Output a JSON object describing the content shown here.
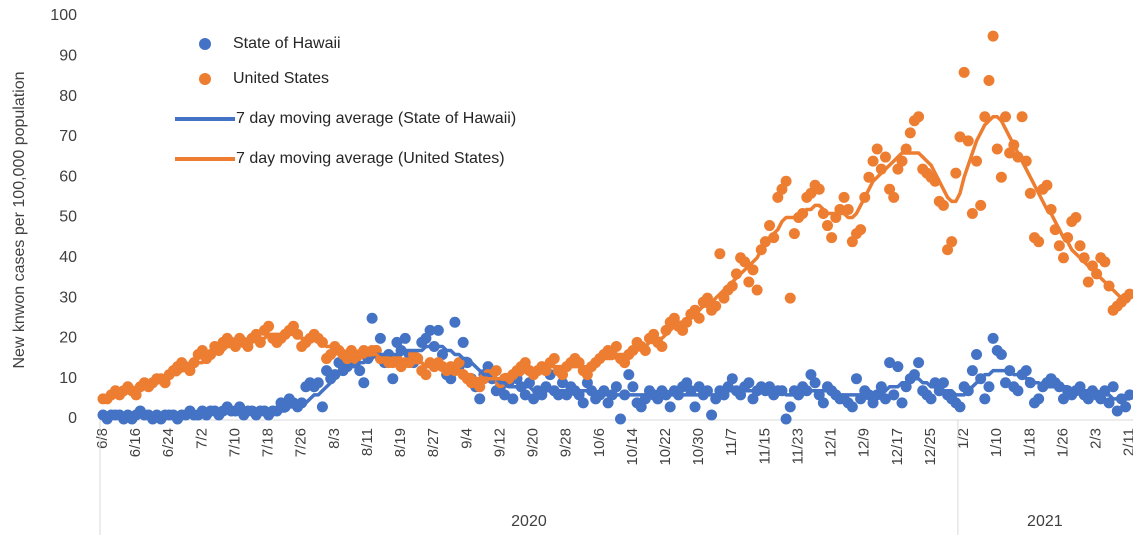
{
  "chart_data": {
    "type": "line",
    "y_label": "New knwon cases per 100,000 population",
    "ylim": [
      0,
      100
    ],
    "yticks": [
      0,
      10,
      20,
      30,
      40,
      50,
      60,
      70,
      80,
      90,
      100
    ],
    "grid": false,
    "legend": "upper left",
    "categories": [
      "6/8",
      null,
      null,
      null,
      null,
      null,
      null,
      null,
      "6/16",
      null,
      null,
      null,
      null,
      null,
      null,
      null,
      "6/24",
      null,
      null,
      null,
      null,
      null,
      null,
      null,
      "7/2",
      null,
      null,
      null,
      null,
      null,
      null,
      null,
      "7/10",
      null,
      null,
      null,
      null,
      null,
      null,
      null,
      "7/18",
      null,
      null,
      null,
      null,
      null,
      null,
      null,
      "7/26",
      null,
      null,
      null,
      null,
      null,
      null,
      null,
      "8/3",
      null,
      null,
      null,
      null,
      null,
      null,
      null,
      "8/11",
      null,
      null,
      null,
      null,
      null,
      null,
      null,
      "8/19",
      null,
      null,
      null,
      null,
      null,
      null,
      null,
      "8/27",
      null,
      null,
      null,
      null,
      null,
      null,
      null,
      "9/4",
      null,
      null,
      null,
      null,
      null,
      null,
      null,
      "9/12",
      null,
      null,
      null,
      null,
      null,
      null,
      null,
      "9/20",
      null,
      null,
      null,
      null,
      null,
      null,
      null,
      "9/28",
      null,
      null,
      null,
      null,
      null,
      null,
      null,
      "10/6",
      null,
      null,
      null,
      null,
      null,
      null,
      null,
      "10/14",
      null,
      null,
      null,
      null,
      null,
      null,
      null,
      "10/22",
      null,
      null,
      null,
      null,
      null,
      null,
      null,
      "10/30",
      null,
      null,
      null,
      null,
      null,
      null,
      null,
      "11/7",
      null,
      null,
      null,
      null,
      null,
      null,
      null,
      "11/15",
      null,
      null,
      null,
      null,
      null,
      null,
      null,
      "11/23",
      null,
      null,
      null,
      null,
      null,
      null,
      null,
      "12/1",
      null,
      null,
      null,
      null,
      null,
      null,
      null,
      "12/9",
      null,
      null,
      null,
      null,
      null,
      null,
      null,
      "12/17",
      null,
      null,
      null,
      null,
      null,
      null,
      null,
      "12/25",
      null,
      null,
      null,
      null,
      null,
      null,
      null,
      "1/2",
      null,
      null,
      null,
      null,
      null,
      null,
      null,
      "1/10",
      null,
      null,
      null,
      null,
      null,
      null,
      null,
      "1/18",
      null,
      null,
      null,
      null,
      null,
      null,
      null,
      "1/26",
      null,
      null,
      null,
      null,
      null,
      null,
      null,
      "2/3",
      null,
      null,
      null,
      null,
      null,
      null,
      null,
      "2/11"
    ],
    "year_groups": [
      {
        "label": "2020",
        "count": 207
      },
      {
        "label": "2021",
        "count": 42
      }
    ],
    "series": [
      {
        "name": "State of Hawaii",
        "type": "scatter",
        "color": "#4472c4",
        "values": [
          1,
          0,
          1,
          1,
          1,
          0,
          1,
          0,
          1,
          2,
          1,
          1,
          0,
          1,
          0,
          1,
          1,
          1,
          0,
          1,
          1,
          2,
          1,
          1,
          2,
          1,
          2,
          2,
          1,
          2,
          3,
          2,
          2,
          3,
          1,
          2,
          2,
          1,
          2,
          2,
          1,
          2,
          2,
          4,
          3,
          5,
          4,
          3,
          4,
          8,
          9,
          8,
          9,
          3,
          12,
          10,
          11,
          14,
          12,
          13,
          16,
          14,
          12,
          9,
          15,
          25,
          17,
          20,
          14,
          16,
          10,
          19,
          17,
          20,
          16,
          14,
          15,
          19,
          20,
          22,
          18,
          22,
          16,
          11,
          10,
          24,
          13,
          19,
          14,
          10,
          8,
          5,
          11,
          13,
          10,
          7,
          8,
          6,
          9,
          5,
          10,
          8,
          6,
          9,
          5,
          7,
          6,
          8,
          11,
          7,
          6,
          9,
          6,
          8,
          7,
          6,
          4,
          9,
          7,
          5,
          6,
          7,
          4,
          6,
          8,
          0,
          6,
          11,
          8,
          4,
          3,
          5,
          7,
          6,
          5,
          7,
          6,
          3,
          7,
          6,
          8,
          9,
          7,
          3,
          8,
          6,
          7,
          1,
          5,
          7,
          6,
          8,
          10,
          7,
          6,
          8,
          9,
          5,
          7,
          8,
          7,
          8,
          6,
          7,
          7,
          0,
          3,
          7,
          6,
          8,
          7,
          11,
          9,
          6,
          4,
          8,
          7,
          6,
          5,
          5,
          4,
          3,
          10,
          5,
          7,
          6,
          4,
          6,
          8,
          5,
          14,
          6,
          13,
          4,
          8,
          10,
          11,
          14,
          7,
          6,
          5,
          9,
          7,
          9,
          6,
          5,
          4,
          3,
          8,
          7,
          12,
          16,
          10,
          5,
          8,
          20,
          17,
          16,
          9,
          12,
          8,
          7,
          11,
          12,
          9,
          4,
          5,
          8,
          9,
          10,
          9,
          8,
          5,
          7,
          6,
          7,
          8,
          6,
          5,
          7,
          6,
          5,
          7,
          4,
          8,
          2,
          5,
          3,
          6
        ]
      },
      {
        "name": "United States",
        "type": "scatter",
        "color": "#ed7d31",
        "values": [
          5,
          5,
          6,
          7,
          6,
          7,
          8,
          7,
          6,
          8,
          9,
          8,
          9,
          10,
          10,
          9,
          11,
          12,
          13,
          14,
          13,
          12,
          14,
          16,
          17,
          15,
          16,
          18,
          17,
          19,
          20,
          19,
          18,
          20,
          19,
          18,
          20,
          21,
          19,
          22,
          23,
          20,
          19,
          20,
          21,
          22,
          23,
          21,
          18,
          19,
          20,
          21,
          20,
          19,
          15,
          16,
          18,
          17,
          16,
          15,
          17,
          15,
          16,
          17,
          16,
          17,
          17,
          15,
          15,
          14,
          14,
          15,
          13,
          14,
          14,
          16,
          15,
          12,
          11,
          14,
          13,
          14,
          13,
          12,
          13,
          12,
          14,
          11,
          10,
          9,
          9,
          8,
          10,
          11,
          11,
          12,
          9,
          10,
          10,
          11,
          12,
          13,
          14,
          12,
          11,
          12,
          13,
          12,
          14,
          15,
          12,
          11,
          13,
          14,
          15,
          14,
          12,
          11,
          13,
          14,
          15,
          16,
          17,
          16,
          18,
          15,
          14,
          16,
          17,
          19,
          18,
          17,
          20,
          21,
          19,
          18,
          22,
          24,
          25,
          23,
          22,
          24,
          26,
          27,
          25,
          29,
          30,
          27,
          28,
          41,
          30,
          32,
          33,
          36,
          40,
          39,
          34,
          37,
          32,
          42,
          44,
          48,
          45,
          55,
          57,
          59,
          30,
          46,
          50,
          51,
          55,
          56,
          58,
          57,
          51,
          48,
          45,
          50,
          52,
          55,
          52,
          44,
          46,
          47,
          55,
          60,
          64,
          67,
          62,
          65,
          57,
          55,
          62,
          64,
          67,
          71,
          74,
          75,
          62,
          61,
          60,
          59,
          54,
          53,
          42,
          44,
          61,
          70,
          86,
          69,
          51,
          64,
          53,
          75,
          84,
          95,
          67,
          60,
          75,
          66,
          68,
          65,
          75,
          64,
          56,
          45,
          44,
          57,
          58,
          52,
          47,
          43,
          40,
          45,
          49,
          50,
          43,
          40,
          34,
          38,
          36,
          40,
          39,
          33,
          27,
          28,
          29,
          30,
          31
        ]
      },
      {
        "name": "7 day moving average (State of Hawaii)",
        "type": "line",
        "color": "#4472c4",
        "values": [
          1,
          1,
          1,
          1,
          1,
          1,
          1,
          1,
          1,
          1,
          1,
          1,
          1,
          1,
          1,
          1,
          1,
          1,
          1,
          1,
          1,
          1,
          1,
          1,
          1,
          1,
          1,
          2,
          2,
          2,
          2,
          2,
          2,
          2,
          2,
          2,
          2,
          2,
          2,
          2,
          2,
          2,
          2,
          2,
          2,
          3,
          3,
          3,
          4,
          4,
          5,
          6,
          6,
          7,
          8,
          9,
          10,
          11,
          12,
          13,
          13,
          13,
          14,
          14,
          15,
          15,
          16,
          16,
          16,
          16,
          16,
          16,
          16,
          17,
          17,
          17,
          17,
          17,
          18,
          18,
          18,
          18,
          18,
          17,
          17,
          16,
          16,
          15,
          15,
          14,
          13,
          12,
          11,
          11,
          10,
          10,
          9,
          9,
          8,
          8,
          8,
          8,
          8,
          8,
          7,
          7,
          7,
          7,
          7,
          7,
          7,
          7,
          7,
          7,
          7,
          7,
          7,
          7,
          6,
          6,
          6,
          6,
          6,
          6,
          6,
          6,
          6,
          6,
          6,
          6,
          6,
          6,
          6,
          6,
          6,
          6,
          6,
          6,
          6,
          6,
          6,
          6,
          6,
          6,
          6,
          6,
          6,
          6,
          6,
          6,
          7,
          7,
          7,
          7,
          7,
          7,
          7,
          7,
          7,
          7,
          7,
          7,
          7,
          7,
          7,
          6,
          6,
          6,
          6,
          6,
          7,
          7,
          7,
          7,
          7,
          7,
          7,
          7,
          6,
          6,
          6,
          6,
          6,
          6,
          6,
          6,
          6,
          6,
          6,
          7,
          8,
          8,
          8,
          9,
          9,
          9,
          10,
          10,
          9,
          9,
          8,
          8,
          7,
          7,
          7,
          7,
          6,
          6,
          6,
          7,
          8,
          9,
          10,
          11,
          11,
          12,
          12,
          12,
          12,
          12,
          11,
          11,
          11,
          10,
          10,
          9,
          9,
          8,
          8,
          8,
          8,
          8,
          8,
          8,
          7,
          7,
          7,
          7,
          7,
          6,
          6,
          6,
          6,
          6,
          5,
          5,
          5,
          5,
          5
        ]
      },
      {
        "name": "7 day moving average (United States)",
        "type": "line",
        "color": "#ed7d31",
        "values": [
          5,
          6,
          6,
          6,
          7,
          7,
          7,
          7,
          7,
          8,
          8,
          8,
          9,
          9,
          9,
          10,
          10,
          11,
          11,
          12,
          12,
          13,
          13,
          14,
          14,
          15,
          15,
          16,
          17,
          17,
          18,
          18,
          19,
          19,
          19,
          19,
          20,
          20,
          20,
          20,
          21,
          21,
          21,
          21,
          21,
          21,
          21,
          21,
          20,
          20,
          20,
          20,
          19,
          19,
          18,
          18,
          17,
          17,
          17,
          16,
          16,
          16,
          16,
          16,
          16,
          16,
          16,
          15,
          15,
          15,
          15,
          15,
          14,
          14,
          14,
          14,
          14,
          14,
          13,
          13,
          13,
          13,
          13,
          13,
          12,
          12,
          12,
          12,
          11,
          11,
          10,
          10,
          10,
          10,
          10,
          10,
          10,
          11,
          11,
          11,
          11,
          11,
          12,
          12,
          12,
          12,
          12,
          12,
          13,
          13,
          13,
          13,
          13,
          13,
          13,
          13,
          13,
          13,
          13,
          14,
          14,
          15,
          15,
          15,
          16,
          16,
          16,
          16,
          17,
          17,
          18,
          18,
          19,
          19,
          20,
          20,
          21,
          22,
          23,
          24,
          24,
          25,
          25,
          26,
          27,
          28,
          28,
          29,
          30,
          31,
          32,
          33,
          34,
          35,
          36,
          37,
          38,
          39,
          40,
          42,
          43,
          45,
          46,
          47,
          49,
          50,
          50,
          50,
          51,
          51,
          52,
          52,
          53,
          53,
          52,
          51,
          51,
          51,
          51,
          51,
          50,
          50,
          51,
          53,
          55,
          57,
          59,
          60,
          61,
          62,
          63,
          64,
          65,
          66,
          66,
          66,
          66,
          66,
          65,
          64,
          63,
          61,
          59,
          57,
          55,
          54,
          54,
          56,
          60,
          63,
          66,
          69,
          71,
          73,
          74,
          75,
          75,
          74,
          72,
          70,
          68,
          66,
          64,
          62,
          60,
          58,
          56,
          54,
          52,
          51,
          49,
          47,
          45,
          44,
          42,
          41,
          40,
          39,
          38,
          37,
          36,
          35,
          34,
          33,
          32,
          31,
          30,
          30,
          30
        ]
      }
    ]
  }
}
